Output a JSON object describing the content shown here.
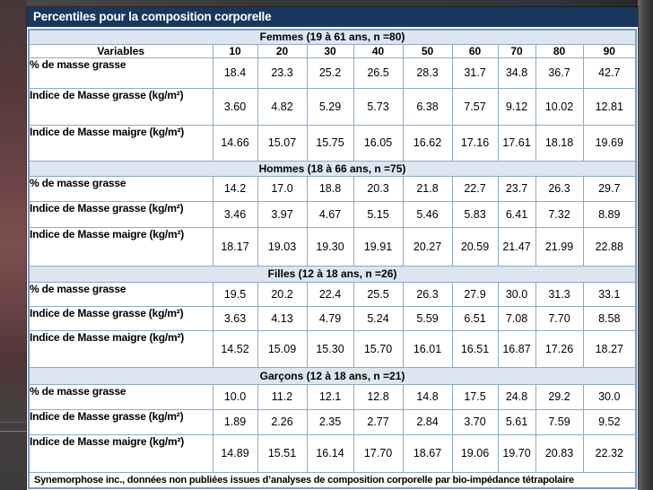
{
  "slide": {
    "title": "Percentiles pour la composition corporelle",
    "source_note": "Synemorphose inc., données non publiées issues d’analyses de composition corporelle par bio-impédance tétrapolaire"
  },
  "chart_data": {
    "type": "table",
    "title": "Percentiles pour la composition corporelle",
    "variables_header": "Variables",
    "percentile_columns": [
      "10",
      "20",
      "30",
      "40",
      "50",
      "60",
      "70",
      "80",
      "90"
    ],
    "sections": [
      {
        "group_label": "Femmes (19 à 61 ans, n =80)",
        "rows": [
          {
            "variable": "% de masse grasse",
            "values": [
              "18.4",
              "23.3",
              "25.2",
              "26.5",
              "28.3",
              "31.7",
              "34.8",
              "36.7",
              "42.7"
            ]
          },
          {
            "variable": "Indice de Masse grasse (kg/m²)",
            "values": [
              "3.60",
              "4.82",
              "5.29",
              "5.73",
              "6.38",
              "7.57",
              "9.12",
              "10.02",
              "12.81"
            ]
          },
          {
            "variable": "Indice de Masse maigre (kg/m²)",
            "values": [
              "14.66",
              "15.07",
              "15.75",
              "16.05",
              "16.62",
              "17.16",
              "17.61",
              "18.18",
              "19.69"
            ]
          }
        ]
      },
      {
        "group_label": "Hommes (18 à 66 ans, n =75)",
        "rows": [
          {
            "variable": "% de masse grasse",
            "values": [
              "14.2",
              "17.0",
              "18.8",
              "20.3",
              "21.8",
              "22.7",
              "23.7",
              "26.3",
              "29.7"
            ]
          },
          {
            "variable": "Indice de Masse grasse (kg/m²)",
            "values": [
              "3.46",
              "3.97",
              "4.67",
              "5.15",
              "5.46",
              "5.83",
              "6.41",
              "7.32",
              "8.89"
            ]
          },
          {
            "variable": "Indice de Masse maigre (kg/m²)",
            "values": [
              "18.17",
              "19.03",
              "19.30",
              "19.91",
              "20.27",
              "20.59",
              "21.47",
              "21.99",
              "22.88"
            ]
          }
        ]
      },
      {
        "group_label": "Filles (12 à 18 ans, n =26)",
        "rows": [
          {
            "variable": "% de masse grasse",
            "values": [
              "19.5",
              "20.2",
              "22.4",
              "25.5",
              "26.3",
              "27.9",
              "30.0",
              "31.3",
              "33.1"
            ]
          },
          {
            "variable": "Indice de Masse grasse (kg/m²)",
            "values": [
              "3.63",
              "4.13",
              "4.79",
              "5.24",
              "5.59",
              "6.51",
              "7.08",
              "7.70",
              "8.58"
            ]
          },
          {
            "variable": "Indice de Masse maigre (kg/m²)",
            "values": [
              "14.52",
              "15.09",
              "15.30",
              "15.70",
              "16.01",
              "16.51",
              "16.87",
              "17.26",
              "18.27"
            ]
          }
        ]
      },
      {
        "group_label": "Garçons (12 à 18 ans, n =21)",
        "rows": [
          {
            "variable": "% de masse grasse",
            "values": [
              "10.0",
              "11.2",
              "12.1",
              "12.8",
              "14.8",
              "17.5",
              "24.8",
              "29.2",
              "30.0"
            ]
          },
          {
            "variable": "Indice de Masse grasse (kg/m²)",
            "values": [
              "1.89",
              "2.26",
              "2.35",
              "2.77",
              "2.84",
              "3.70",
              "5.61",
              "7.59",
              "9.52"
            ]
          },
          {
            "variable": "Indice de Masse maigre (kg/m²)",
            "values": [
              "14.89",
              "15.51",
              "16.14",
              "17.70",
              "18.67",
              "19.06",
              "19.70",
              "20.83",
              "22.32"
            ]
          }
        ]
      }
    ],
    "source_note": "Synemorphose inc., données non publiées issues d’analyses de composition corporelle par bio-impédance tétrapolaire"
  },
  "colors": {
    "title_bar": "#17375e",
    "band_background": "#dce6f1",
    "table_border": "#8aa9cc"
  }
}
